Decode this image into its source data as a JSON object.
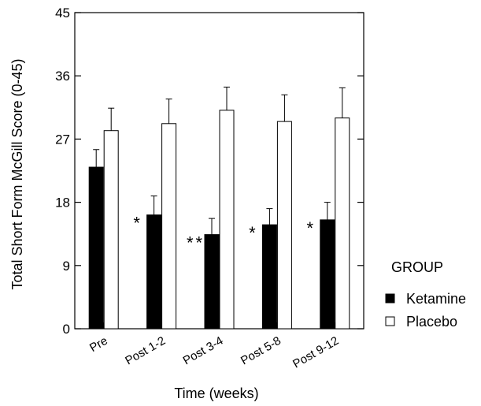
{
  "chart_data": {
    "type": "bar",
    "categories": [
      "Pre",
      "Post 1-2",
      "Post 3-4",
      "Post 5-8",
      "Post 9-12"
    ],
    "series": [
      {
        "name": "Ketamine",
        "color": "#000000",
        "values": [
          23.0,
          16.2,
          13.4,
          14.8,
          15.5
        ],
        "error": [
          2.5,
          2.7,
          2.3,
          2.3,
          2.5
        ]
      },
      {
        "name": "Placebo",
        "color": "#ffffff",
        "values": [
          28.2,
          29.2,
          31.1,
          29.5,
          30.0
        ],
        "error": [
          3.2,
          3.5,
          3.3,
          3.8,
          4.3
        ]
      }
    ],
    "significance": [
      "",
      "*",
      "**",
      "*",
      "*"
    ],
    "title": "",
    "xlabel": "Time (weeks)",
    "ylabel": "Total Short Form McGill Score (0-45)",
    "ylim": [
      0,
      45
    ],
    "yticks": [
      "0",
      "9",
      "18",
      "27",
      "36",
      "45"
    ],
    "legend": {
      "title": "GROUP",
      "placement": "right",
      "entries": [
        "Ketamine",
        "Placebo"
      ]
    },
    "grid": false
  }
}
